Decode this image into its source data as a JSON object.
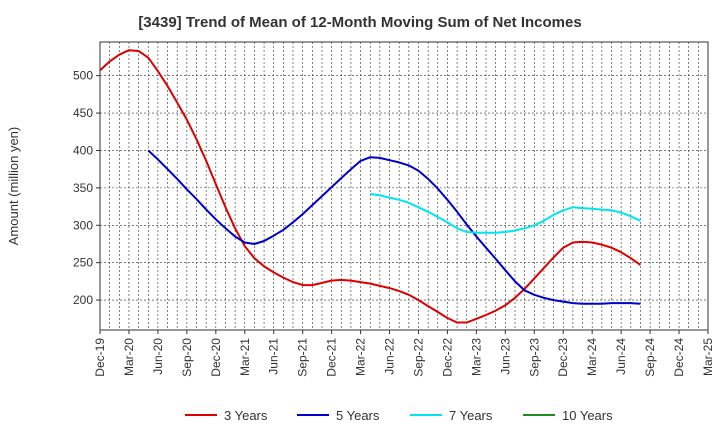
{
  "chart_data": {
    "type": "line",
    "title": "[3439]  Trend of Mean of 12-Month Moving Sum of Net Incomes",
    "xlabel": "",
    "ylabel": "Amount (million yen)",
    "categories": [
      "Dec-19",
      "Mar-20",
      "Jun-20",
      "Sep-20",
      "Dec-20",
      "Mar-21",
      "Jun-21",
      "Sep-21",
      "Dec-21",
      "Mar-22",
      "Jun-22",
      "Sep-22",
      "Dec-22",
      "Mar-23",
      "Jun-23",
      "Sep-23",
      "Dec-23",
      "Mar-24",
      "Jun-24",
      "Sep-24",
      "Dec-24",
      "Mar-25"
    ],
    "ylim": [
      160,
      545
    ],
    "yticks": [
      200,
      250,
      300,
      350,
      400,
      450,
      500
    ],
    "grid": true,
    "legend_position": "bottom",
    "series": [
      {
        "name": "3 Years",
        "color": "#dd0000",
        "x": [
          0,
          1,
          2,
          3,
          4,
          5,
          6,
          7,
          8,
          9,
          10,
          11,
          12,
          13,
          14,
          15,
          16,
          17,
          18,
          19,
          20,
          21,
          22,
          23,
          24,
          25,
          26,
          27,
          28,
          29,
          30,
          31,
          32,
          33,
          34,
          35,
          36,
          37,
          38,
          39,
          40,
          41,
          42,
          43,
          44,
          45,
          46,
          47,
          48,
          49,
          50,
          51,
          52,
          53,
          54,
          55,
          56,
          57,
          58,
          59,
          60
        ],
        "values": [
          507,
          519,
          528,
          534,
          533,
          524,
          506,
          486,
          464,
          441,
          415,
          386,
          355,
          324,
          296,
          272,
          256,
          245,
          237,
          230,
          224,
          220,
          220,
          223,
          226,
          227,
          226,
          224,
          222,
          219,
          216,
          212,
          207,
          200,
          192,
          184,
          176,
          170,
          170,
          175,
          180,
          186,
          193,
          203,
          215,
          229,
          243,
          257,
          270,
          277,
          278,
          277,
          274,
          270,
          264,
          256,
          247,
          null,
          null,
          null,
          null
        ]
      },
      {
        "name": "5 Years",
        "color": "#0000cc",
        "x": [
          0,
          1,
          2,
          3,
          4,
          5,
          6,
          7,
          8,
          9,
          10,
          11,
          12,
          13,
          14,
          15,
          16,
          17,
          18,
          19,
          20,
          21,
          22,
          23,
          24,
          25,
          26,
          27,
          28,
          29,
          30,
          31,
          32,
          33,
          34,
          35,
          36,
          37,
          38,
          39,
          40,
          41,
          42,
          43,
          44,
          45,
          46,
          47,
          48,
          49,
          50,
          51,
          52,
          53,
          54,
          55,
          56,
          57,
          58,
          59,
          60
        ],
        "values": [
          null,
          null,
          null,
          null,
          null,
          400,
          388,
          375,
          362,
          348,
          335,
          321,
          308,
          296,
          285,
          277,
          275,
          279,
          286,
          294,
          304,
          315,
          327,
          339,
          351,
          363,
          375,
          386,
          391,
          390,
          387,
          384,
          380,
          373,
          362,
          349,
          334,
          318,
          301,
          285,
          270,
          255,
          240,
          225,
          213,
          207,
          203,
          200,
          198,
          196,
          195,
          195,
          195,
          196,
          196,
          196,
          195,
          null,
          null,
          null,
          null
        ]
      },
      {
        "name": "7 Years",
        "color": "#00e5ee",
        "x": [
          0,
          1,
          2,
          3,
          4,
          5,
          6,
          7,
          8,
          9,
          10,
          11,
          12,
          13,
          14,
          15,
          16,
          17,
          18,
          19,
          20,
          21,
          22,
          23,
          24,
          25,
          26,
          27,
          28,
          29,
          30,
          31,
          32,
          33,
          34,
          35,
          36,
          37,
          38,
          39,
          40,
          41,
          42,
          43,
          44,
          45,
          46,
          47,
          48,
          49,
          50,
          51,
          52,
          53,
          54,
          55,
          56,
          57,
          58,
          59,
          60
        ],
        "values": [
          null,
          null,
          null,
          null,
          null,
          null,
          null,
          null,
          null,
          null,
          null,
          null,
          null,
          null,
          null,
          null,
          null,
          null,
          null,
          null,
          null,
          null,
          null,
          null,
          null,
          null,
          null,
          null,
          342,
          340,
          337,
          334,
          330,
          324,
          318,
          311,
          304,
          296,
          291,
          290,
          290,
          290,
          291,
          293,
          296,
          300,
          306,
          314,
          320,
          324,
          323,
          322,
          321,
          320,
          317,
          312,
          306,
          null,
          null,
          null,
          null
        ]
      },
      {
        "name": "10 Years",
        "color": "#228b22",
        "x": [],
        "values": []
      }
    ]
  }
}
